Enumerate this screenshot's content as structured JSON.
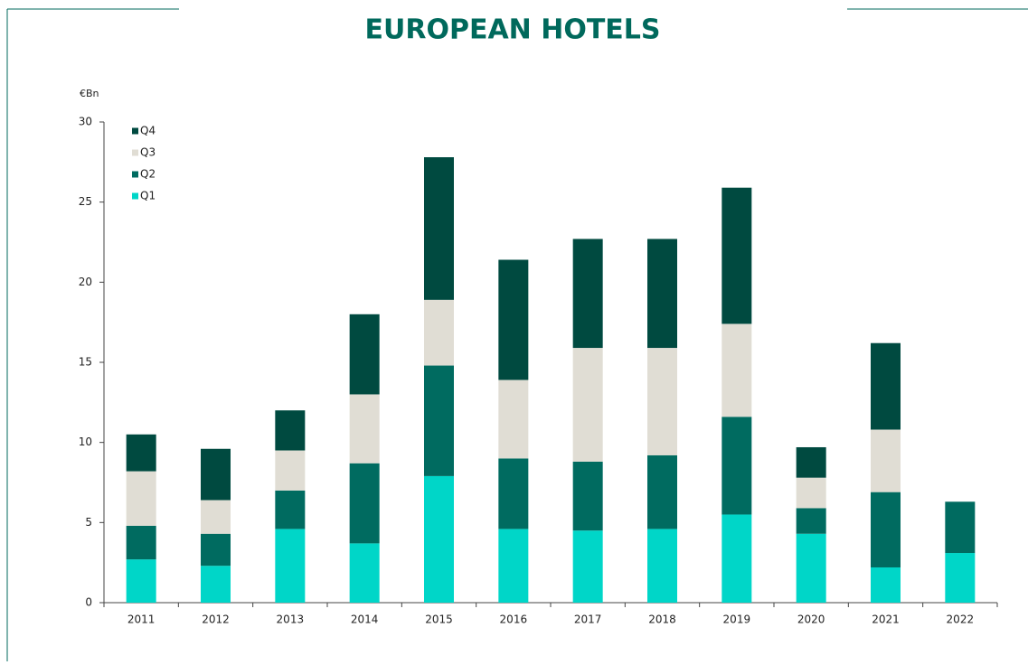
{
  "chart_data": {
    "type": "stacked_bar",
    "title": "EUROPEAN HOTELS",
    "y_unit_label": "€Bn",
    "categories": [
      "2011",
      "2012",
      "2013",
      "2014",
      "2015",
      "2016",
      "2017",
      "2018",
      "2019",
      "2020",
      "2021",
      "2022"
    ],
    "series": [
      {
        "name": "Q1",
        "color": "#00d6c8",
        "values": [
          2.7,
          2.3,
          4.6,
          3.7,
          7.9,
          4.6,
          4.5,
          4.6,
          5.5,
          4.3,
          2.2,
          3.1
        ]
      },
      {
        "name": "Q2",
        "color": "#006b60",
        "values": [
          2.1,
          2.0,
          2.4,
          5.0,
          6.9,
          4.4,
          4.3,
          4.6,
          6.1,
          1.6,
          4.7,
          3.2
        ]
      },
      {
        "name": "Q3",
        "color": "#e0ddd4",
        "values": [
          3.4,
          2.1,
          2.5,
          4.3,
          4.1,
          4.9,
          7.1,
          6.7,
          5.8,
          1.9,
          3.9,
          null
        ]
      },
      {
        "name": "Q4",
        "color": "#004a40",
        "values": [
          2.3,
          3.2,
          2.5,
          5.0,
          8.9,
          7.5,
          6.8,
          6.8,
          8.5,
          1.9,
          5.4,
          null
        ]
      }
    ],
    "ylim": [
      0,
      30
    ],
    "yticks": [
      0,
      5,
      10,
      15,
      20,
      25,
      30
    ],
    "legend": "top-left"
  }
}
